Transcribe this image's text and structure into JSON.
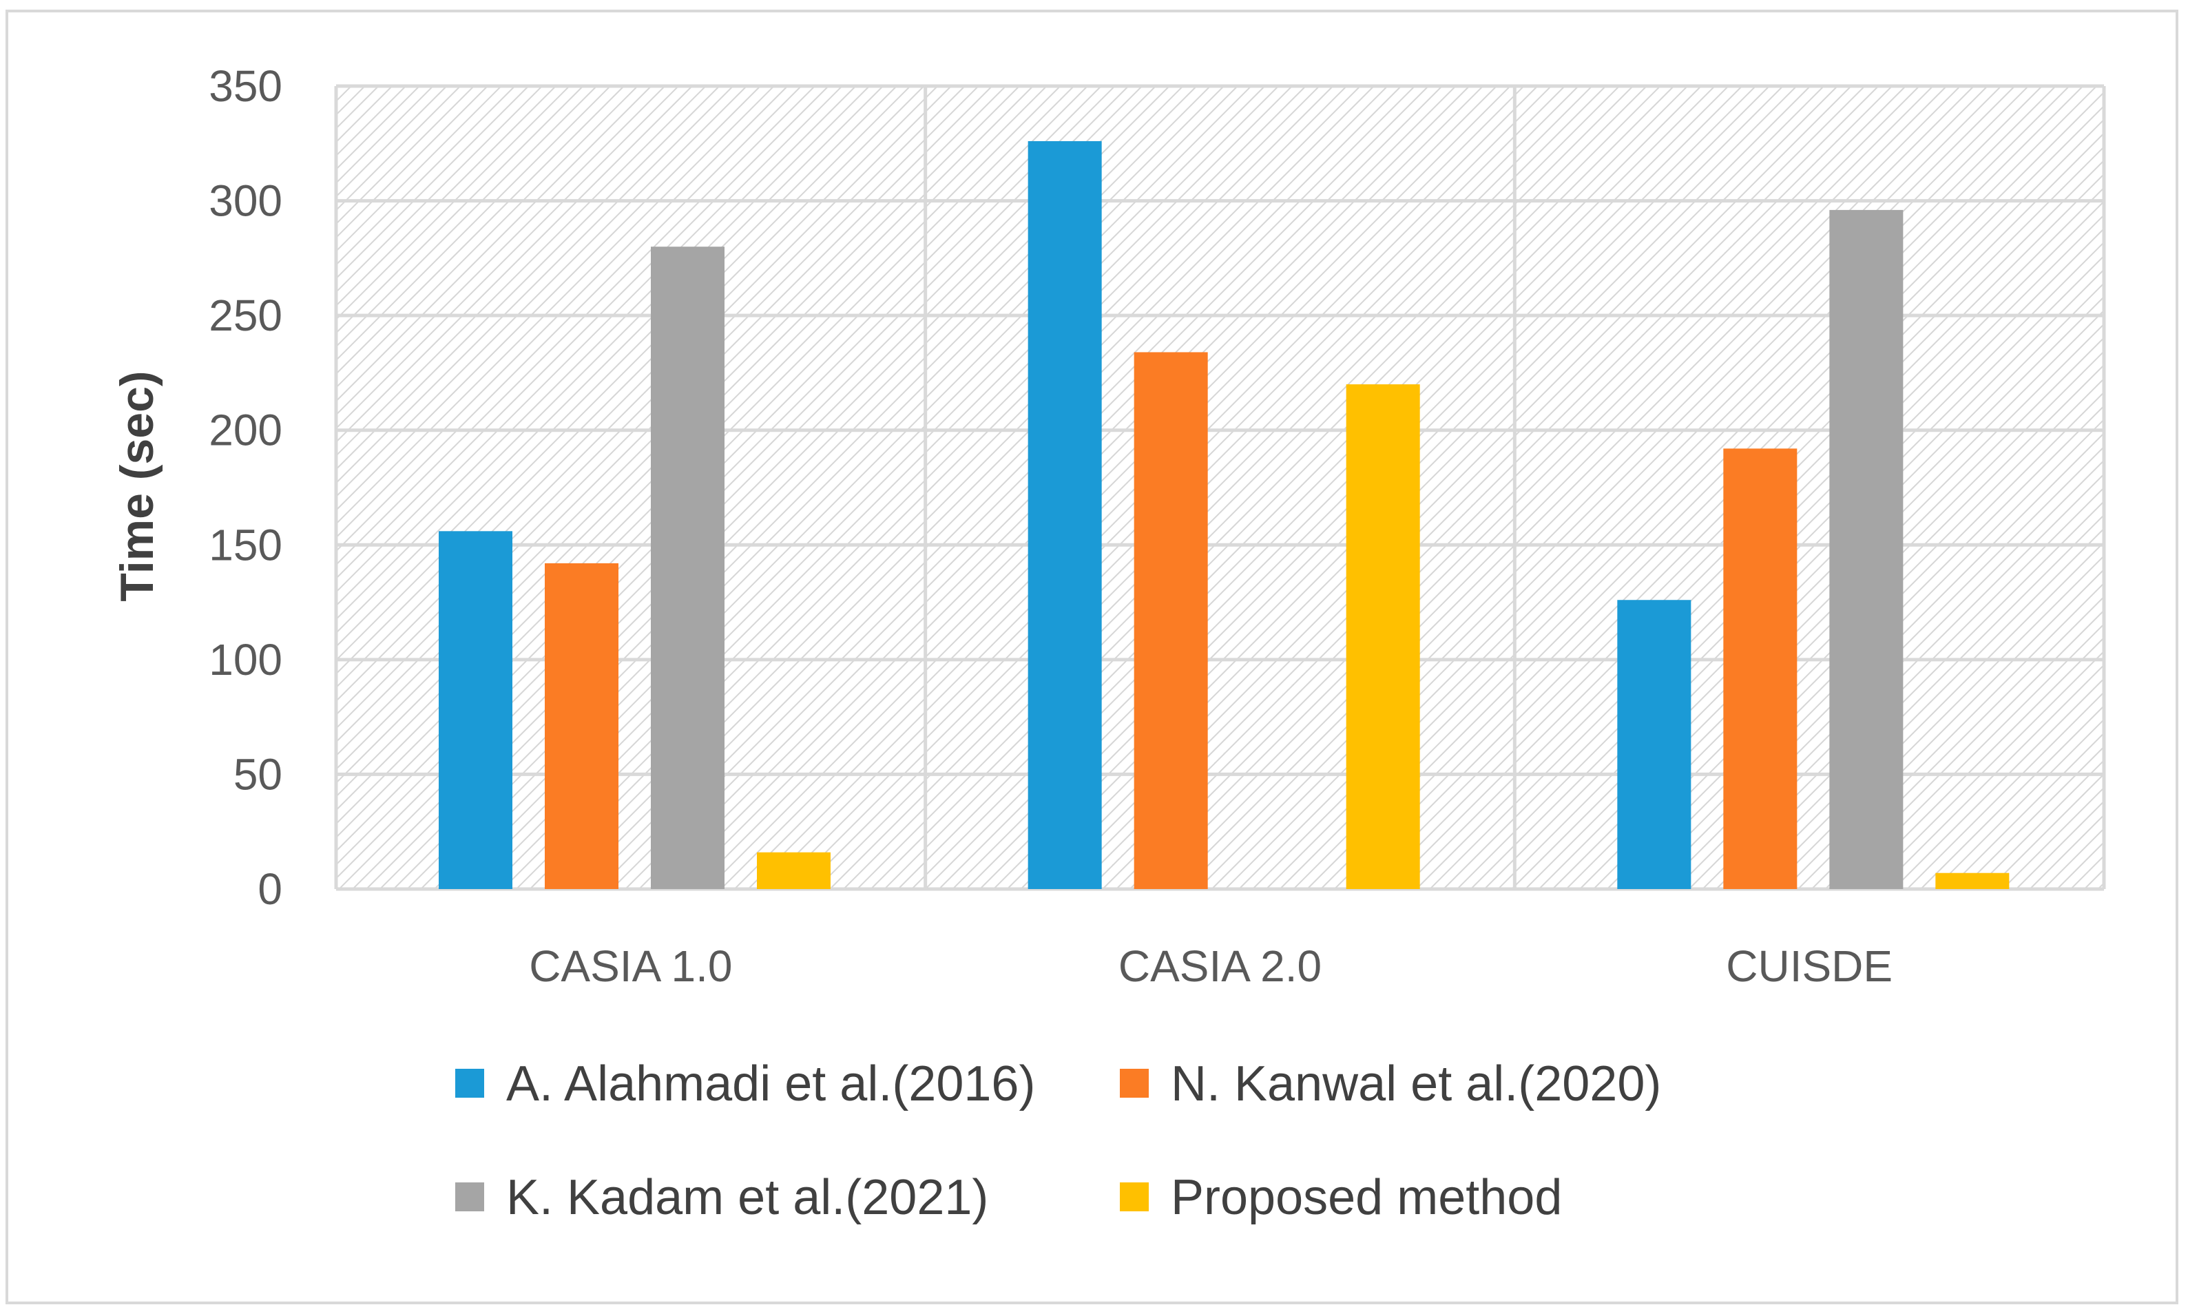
{
  "chart_data": {
    "type": "bar",
    "title": "",
    "xlabel": "",
    "ylabel": "Time (sec)",
    "ylim": [
      0,
      350
    ],
    "yticks": [
      0,
      50,
      100,
      150,
      200,
      250,
      300,
      350
    ],
    "grid": true,
    "legend_position": "bottom",
    "categories": [
      "CASIA 1.0",
      "CASIA 2.0",
      "CUISDE"
    ],
    "series": [
      {
        "name": "A. Alahmadi et al.(2016)",
        "color": "#1b9ad6",
        "values": [
          156,
          326,
          126
        ]
      },
      {
        "name": "N. Kanwal et al.(2020)",
        "color": "#fb7c24",
        "values": [
          142,
          234,
          192
        ]
      },
      {
        "name": "K. Kadam et al.(2021)",
        "color": "#a5a5a5",
        "values": [
          280,
          null,
          296
        ]
      },
      {
        "name": "Proposed method",
        "color": "#ffc000",
        "values": [
          16,
          220,
          7
        ]
      }
    ]
  }
}
